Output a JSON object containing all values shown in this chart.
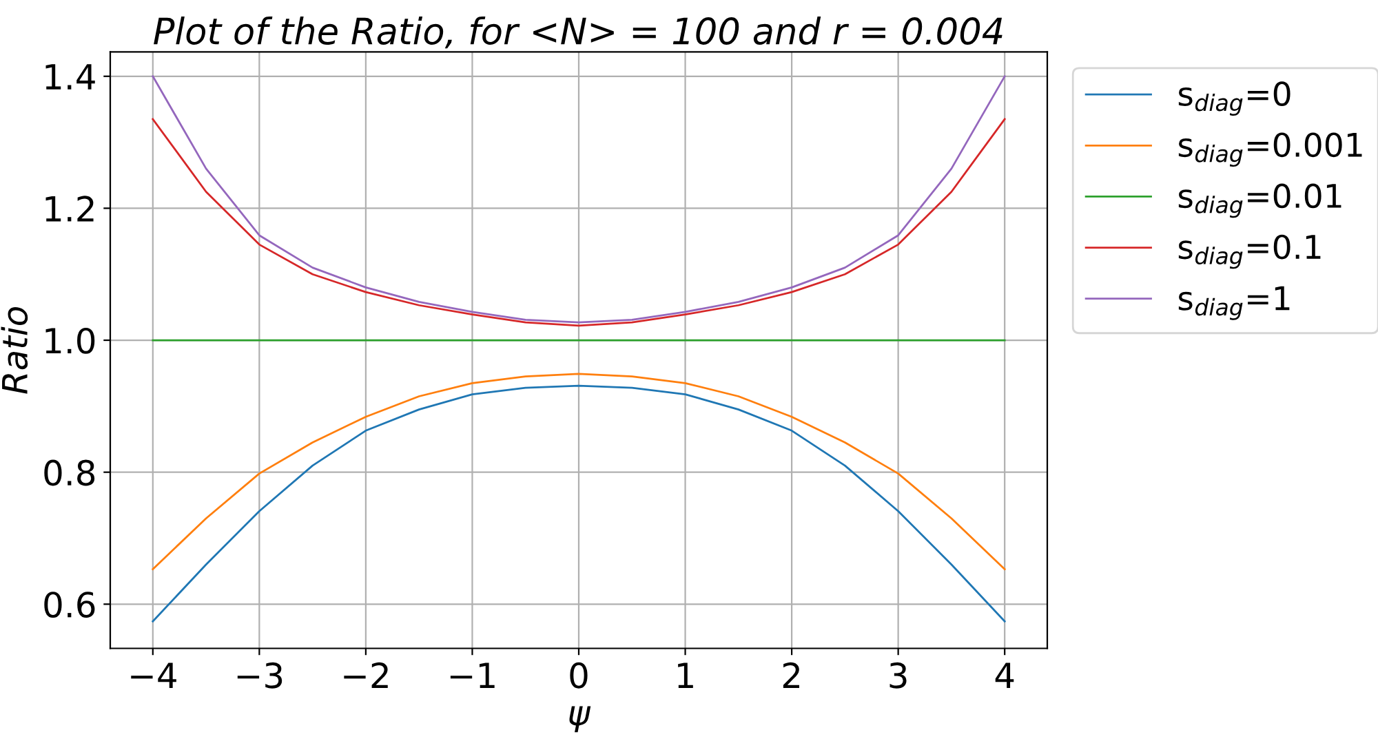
{
  "chart_data": {
    "type": "line",
    "title": "Plot of the Ratio, for <N> = 100 and r = 0.004",
    "xlabel": "ψ",
    "ylabel": "Ratio",
    "x": [
      -4,
      -3.5,
      -3,
      -2.5,
      -2,
      -1.5,
      -1,
      -0.5,
      0,
      0.5,
      1,
      1.5,
      2,
      2.5,
      3,
      3.5,
      4
    ],
    "series": [
      {
        "name": "s$_{diag}$=0",
        "color": "#1f77b4",
        "values": [
          0.574,
          0.66,
          0.741,
          0.81,
          0.863,
          0.895,
          0.918,
          0.928,
          0.931,
          0.928,
          0.918,
          0.895,
          0.863,
          0.81,
          0.741,
          0.66,
          0.574
        ]
      },
      {
        "name": "s$_{diag}$=0.001",
        "color": "#ff7f0e",
        "values": [
          0.653,
          0.73,
          0.798,
          0.845,
          0.884,
          0.915,
          0.935,
          0.945,
          0.949,
          0.945,
          0.935,
          0.915,
          0.884,
          0.845,
          0.798,
          0.73,
          0.653
        ]
      },
      {
        "name": "s$_{diag}$=0.01",
        "color": "#2ca02c",
        "values": [
          1,
          1,
          1,
          1,
          1,
          1,
          1,
          1,
          1,
          1,
          1,
          1,
          1,
          1,
          1,
          1,
          1
        ]
      },
      {
        "name": "s$_{diag}$=0.1",
        "color": "#d62728",
        "values": [
          1.335,
          1.225,
          1.145,
          1.1,
          1.073,
          1.053,
          1.039,
          1.027,
          1.022,
          1.027,
          1.039,
          1.053,
          1.073,
          1.1,
          1.145,
          1.225,
          1.335
        ]
      },
      {
        "name": "s$_{diag}$=1",
        "color": "#9467bd",
        "values": [
          1.4,
          1.26,
          1.159,
          1.11,
          1.08,
          1.058,
          1.043,
          1.031,
          1.027,
          1.031,
          1.043,
          1.058,
          1.08,
          1.11,
          1.159,
          1.26,
          1.4
        ]
      }
    ],
    "xlim": [
      -4.4,
      4.4
    ],
    "ylim": [
      0.533,
      1.437
    ],
    "xticks": [
      {
        "value": -4,
        "label": "−4"
      },
      {
        "value": -3,
        "label": "−3"
      },
      {
        "value": -2,
        "label": "−2"
      },
      {
        "value": -1,
        "label": "−1"
      },
      0,
      1,
      2,
      3,
      4
    ],
    "yticks": [
      {
        "value": 0.6,
        "label": "0.6"
      },
      {
        "value": 0.8,
        "label": "0.8"
      },
      {
        "value": 1.0,
        "label": "1.0"
      },
      {
        "value": 1.2,
        "label": "1.2"
      },
      {
        "value": 1.4,
        "label": "1.4"
      }
    ],
    "grid": true,
    "legend": "top right"
  }
}
